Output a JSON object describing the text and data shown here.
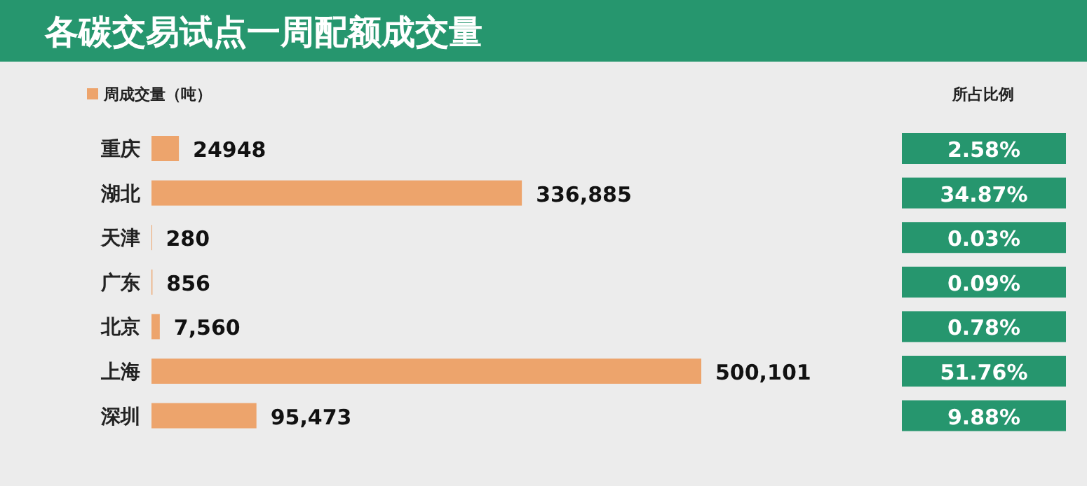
{
  "chart_data": [
    {
      "type": "bar",
      "orientation": "horizontal",
      "title": "各碳交易试点一周配额成交量",
      "categories": [
        "重庆",
        "湖北",
        "天津",
        "广东",
        "北京",
        "上海",
        "深圳"
      ],
      "legend": "top left",
      "series": [
        {
          "name": "周成交量（吨）",
          "color": "#eda46c",
          "values": [
            24948,
            336885,
            280,
            856,
            7560,
            500101,
            95473
          ],
          "value_labels": [
            "24948",
            "336,885",
            "280",
            "856",
            "7,560",
            "500,101",
            "95,473"
          ]
        }
      ]
    },
    {
      "type": "other",
      "title": "所占比例",
      "color": "#26966e",
      "annotations": [
        "2.58%",
        "34.87%",
        "0.03%",
        "0.09%",
        "0.78%",
        "51.76%",
        "9.88%"
      ]
    }
  ]
}
